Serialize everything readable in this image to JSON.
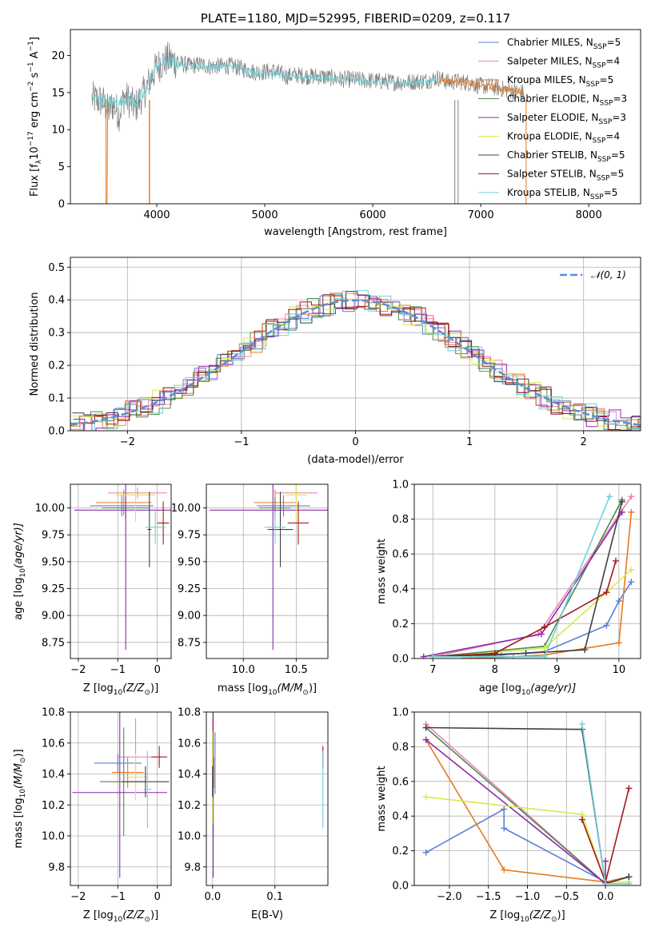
{
  "colors": {
    "Chabrier MILES": "#5b7fd6",
    "Salpeter MILES": "#ef84b4",
    "Kroupa MILES": "#e87a1e",
    "Chabrier ELODIE": "#4f8a4f",
    "Salpeter ELODIE": "#8d2aa9",
    "Kroupa ELODIE": "#d8ea4a",
    "Chabrier STELIB": "#404040",
    "Salpeter STELIB": "#a31a1a",
    "Kroupa STELIB": "#6fd2d8"
  },
  "chart_data": [
    {
      "id": "spectrum",
      "type": "line",
      "title": "PLATE=1180, MJD=52995, FIBERID=0209, z=0.117",
      "xlabel": "wavelength [Angstrom, rest frame]",
      "ylabel": "Flux [f",
      "ylabel_parts": [
        "Flux [f",
        "λ",
        "10",
        "−17",
        " erg cm",
        "−2",
        " s",
        "−1",
        " A",
        "−1",
        "]"
      ],
      "xlim": [
        3200,
        8480
      ],
      "ylim": [
        0,
        23.5
      ],
      "xticks": [
        4000,
        5000,
        6000,
        7000,
        8000
      ],
      "yticks": [
        0,
        5,
        10,
        15,
        20
      ],
      "grid": false,
      "legend_position": "top-right",
      "legend": [
        {
          "label": "Chabrier MILES, N",
          "sub": "SSP",
          "eq": "=5"
        },
        {
          "label": "Salpeter MILES, N",
          "sub": "SSP",
          "eq": "=4"
        },
        {
          "label": "Kroupa MILES, N",
          "sub": "SSP",
          "eq": "=5"
        },
        {
          "label": "Chabrier ELODIE, N",
          "sub": "SSP",
          "eq": "=3"
        },
        {
          "label": "Salpeter ELODIE, N",
          "sub": "SSP",
          "eq": "=3"
        },
        {
          "label": "Kroupa ELODIE, N",
          "sub": "SSP",
          "eq": "=4"
        },
        {
          "label": "Chabrier STELIB, N",
          "sub": "SSP",
          "eq": "=5"
        },
        {
          "label": "Salpeter STELIB, N",
          "sub": "SSP",
          "eq": "=5"
        },
        {
          "label": "Kroupa STELIB, N",
          "sub": "SSP",
          "eq": "=5"
        }
      ],
      "series": [
        {
          "name": "data",
          "color": "#808080",
          "x": [
            3400,
            3450,
            3500,
            3550,
            3600,
            3650,
            3700,
            3750,
            3800,
            3850,
            3900,
            3950,
            4000,
            4100,
            4200,
            4300,
            4400,
            4500,
            4600,
            4700,
            4800,
            4900,
            5000,
            5100,
            5200,
            5300,
            5400,
            5500,
            5600,
            5700,
            5800,
            5900,
            6000,
            6100,
            6200,
            6300,
            6400,
            6500,
            6600,
            6700,
            6800,
            6900,
            7000,
            7100,
            7200,
            7300,
            7400
          ],
          "y": [
            14.2,
            14.0,
            13.8,
            12.5,
            13.5,
            12.0,
            14.5,
            13.8,
            13.0,
            14.2,
            15.5,
            17.0,
            18.5,
            19.5,
            19.0,
            18.6,
            18.8,
            18.5,
            18.6,
            18.6,
            18.2,
            17.8,
            17.8,
            17.9,
            17.2,
            17.4,
            17.2,
            17.2,
            17.0,
            16.8,
            16.8,
            16.7,
            16.6,
            16.5,
            16.4,
            16.4,
            16.5,
            16.6,
            17.0,
            16.4,
            16.5,
            16.3,
            15.9,
            15.8,
            15.5,
            15.2,
            15.0
          ]
        },
        {
          "name": "model",
          "color": "#6fd2d8",
          "x": [
            3400,
            3450,
            3500,
            3550,
            3600,
            3650,
            3700,
            3750,
            3800,
            3850,
            3900,
            3950,
            4000,
            4100,
            4200,
            4300,
            4400,
            4500,
            4600,
            4700,
            4800,
            4900,
            5000,
            5100,
            5200,
            5300,
            5400,
            5500,
            5600,
            5700,
            5800,
            5900,
            6000,
            6100,
            6200,
            6300,
            6400,
            6500,
            6600
          ],
          "y": [
            14.3,
            14.1,
            13.9,
            13.4,
            13.8,
            13.4,
            14.2,
            14.0,
            13.7,
            14.4,
            15.0,
            17.2,
            18.8,
            19.2,
            18.9,
            18.5,
            18.7,
            18.4,
            18.5,
            18.5,
            18.1,
            17.7,
            17.6,
            17.6,
            17.1,
            17.2,
            17.0,
            17.0,
            16.9,
            16.7,
            16.7,
            16.6,
            16.5,
            16.4,
            16.3,
            16.3,
            16.4,
            16.4,
            16.8
          ]
        },
        {
          "name": "model-red",
          "color": "#e87a1e",
          "x": [
            6600,
            6700,
            6800,
            6900,
            7000,
            7100,
            7200,
            7300,
            7400
          ],
          "y": [
            16.8,
            16.6,
            16.5,
            16.3,
            15.9,
            15.7,
            15.5,
            15.3,
            15.1
          ]
        }
      ]
    },
    {
      "id": "residuals",
      "type": "step",
      "xlabel": "(data-model)/error",
      "ylabel": "Normed distribution",
      "xlim": [
        -2.5,
        2.5
      ],
      "ylim": [
        0,
        0.53
      ],
      "xticks": [
        -2,
        -1,
        0,
        1,
        2
      ],
      "yticks": [
        0.0,
        0.1,
        0.2,
        0.3,
        0.4,
        0.5
      ],
      "grid": true,
      "legend_position": "top-right",
      "legend": "𝒩(0, 1)",
      "gaussian": {
        "mu": 0,
        "sigma": 1,
        "color": "#5b8dd6"
      }
    },
    {
      "id": "age_vs_Z",
      "type": "errorbar",
      "xlabel": "Z [log",
      "xlabel_parts": [
        "Z [log",
        "10",
        "(Z/Z",
        "⊙",
        ")]"
      ],
      "ylabel_parts": [
        "age  [log",
        "10",
        "(age/yr)]"
      ],
      "xlim": [
        -2.2,
        0.35
      ],
      "ylim": [
        8.6,
        10.22
      ],
      "xticks": [
        -2,
        -1,
        0
      ],
      "yticks": [
        8.75,
        9.0,
        9.25,
        9.5,
        9.75,
        10.0
      ],
      "grid": true,
      "points": [
        {
          "c": "Chabrier MILES",
          "x": -0.9,
          "xerr": 0.8,
          "y": 10.02,
          "yerr": 0.1
        },
        {
          "c": "Salpeter MILES",
          "x": -0.5,
          "xerr": 0.75,
          "y": 10.14,
          "yerr": 0.05
        },
        {
          "c": "Kroupa MILES",
          "x": -0.85,
          "xerr": 0.7,
          "y": 10.05,
          "yerr": 0.12
        },
        {
          "c": "Chabrier ELODIE",
          "x": -0.8,
          "xerr": 0.6,
          "y": 10.0,
          "yerr": 0.1
        },
        {
          "c": "Salpeter ELODIE",
          "x": -0.8,
          "xerr": 1.3,
          "y": 9.98,
          "yerr": 1.3
        },
        {
          "c": "Kroupa ELODIE",
          "x": -0.55,
          "xerr": 0.5,
          "y": 10.12,
          "yerr": 0.25
        },
        {
          "c": "Chabrier STELIB",
          "x": -0.2,
          "xerr": 0.05,
          "y": 9.8,
          "yerr": 0.35
        },
        {
          "c": "Salpeter STELIB",
          "x": 0.15,
          "xerr": 0.15,
          "y": 9.86,
          "yerr": 0.2
        },
        {
          "c": "Kroupa STELIB",
          "x": -0.05,
          "xerr": 0.25,
          "y": 9.82,
          "yerr": 0.15
        }
      ]
    },
    {
      "id": "age_vs_mass",
      "type": "errorbar",
      "xlabel_parts": [
        "mass [log",
        "10",
        "(M/M",
        "⊙",
        ")]"
      ],
      "xlim": [
        9.65,
        10.8
      ],
      "ylim": [
        8.6,
        10.22
      ],
      "xticks": [
        10.0,
        10.5
      ],
      "yticks": [
        8.75,
        9.0,
        9.25,
        9.5,
        9.75,
        10.0
      ],
      "grid": true,
      "points": [
        {
          "c": "Chabrier MILES",
          "x": 10.38,
          "xerr": 0.25,
          "y": 10.02,
          "yerr": 0.1
        },
        {
          "c": "Salpeter MILES",
          "x": 10.5,
          "xerr": 0.2,
          "y": 10.14,
          "yerr": 0.05
        },
        {
          "c": "Kroupa MILES",
          "x": 10.3,
          "xerr": 0.2,
          "y": 10.05,
          "yerr": 0.12
        },
        {
          "c": "Chabrier ELODIE",
          "x": 10.3,
          "xerr": 0.15,
          "y": 10.0,
          "yerr": 0.1
        },
        {
          "c": "Salpeter ELODIE",
          "x": 10.28,
          "xerr": 0.6,
          "y": 9.98,
          "yerr": 1.3
        },
        {
          "c": "Kroupa ELODIE",
          "x": 10.5,
          "xerr": 0.1,
          "y": 10.12,
          "yerr": 0.25
        },
        {
          "c": "Chabrier STELIB",
          "x": 10.35,
          "xerr": 0.12,
          "y": 9.8,
          "yerr": 0.35
        },
        {
          "c": "Salpeter STELIB",
          "x": 10.52,
          "xerr": 0.1,
          "y": 9.86,
          "yerr": 0.2
        },
        {
          "c": "Kroupa STELIB",
          "x": 10.3,
          "xerr": 0.1,
          "y": 9.82,
          "yerr": 0.15
        }
      ]
    },
    {
      "id": "mass_weight_vs_age",
      "type": "line",
      "xlabel_parts": [
        "age  [log",
        "10",
        "(age/yr)]"
      ],
      "ylabel": "mass weight",
      "xlim": [
        6.7,
        10.35
      ],
      "ylim": [
        0,
        1
      ],
      "xticks": [
        7,
        8,
        9,
        10
      ],
      "yticks": [
        0.0,
        0.2,
        0.4,
        0.6,
        0.8,
        1.0
      ],
      "grid": true,
      "series": [
        {
          "c": "Chabrier MILES",
          "x": [
            7.6,
            8.1,
            8.8,
            9.8,
            10.0,
            10.2
          ],
          "y": [
            0.01,
            0.02,
            0.04,
            0.19,
            0.33,
            0.44
          ]
        },
        {
          "c": "Salpeter MILES",
          "x": [
            7.0,
            8.7,
            10.2
          ],
          "y": [
            0.01,
            0.14,
            0.93
          ]
        },
        {
          "c": "Kroupa MILES",
          "x": [
            7.5,
            8.3,
            8.8,
            10.0,
            10.2
          ],
          "y": [
            0.0,
            0.01,
            0.02,
            0.09,
            0.84
          ]
        },
        {
          "c": "Chabrier ELODIE",
          "x": [
            7.0,
            8.8,
            10.05
          ],
          "y": [
            0.01,
            0.07,
            0.91
          ]
        },
        {
          "c": "Salpeter ELODIE",
          "x": [
            6.85,
            8.75,
            10.05
          ],
          "y": [
            0.01,
            0.14,
            0.84
          ]
        },
        {
          "c": "Kroupa ELODIE",
          "x": [
            7.2,
            8.8,
            9.8,
            10.2
          ],
          "y": [
            0.01,
            0.06,
            0.38,
            0.51
          ]
        },
        {
          "c": "Chabrier STELIB",
          "x": [
            7.0,
            8.5,
            9.45,
            10.05
          ],
          "y": [
            0.01,
            0.03,
            0.05,
            0.9
          ]
        },
        {
          "c": "Salpeter STELIB",
          "x": [
            7.0,
            8.0,
            8.8,
            9.8,
            9.95
          ],
          "y": [
            0.01,
            0.03,
            0.18,
            0.38,
            0.56
          ]
        },
        {
          "c": "Kroupa STELIB",
          "x": [
            7.0,
            8.8,
            9.85
          ],
          "y": [
            0.01,
            0.01,
            0.93
          ]
        }
      ]
    },
    {
      "id": "mass_vs_Z",
      "type": "errorbar",
      "xlabel_parts": [
        "Z [log",
        "10",
        "(Z/Z",
        "⊙",
        ")]"
      ],
      "ylabel_parts": [
        "mass [log",
        "10",
        "(M/M",
        "⊙",
        ")]"
      ],
      "xlim": [
        -2.2,
        0.35
      ],
      "ylim": [
        9.68,
        10.8
      ],
      "xticks": [
        -2,
        -1,
        0
      ],
      "yticks": [
        9.8,
        10.0,
        10.2,
        10.4,
        10.6,
        10.8
      ],
      "grid": true,
      "points": [
        {
          "c": "Chabrier MILES",
          "x": -1.0,
          "xerr": 0.6,
          "y": 10.47,
          "yerr": 0.06
        },
        {
          "c": "Salpeter MILES",
          "x": -0.55,
          "xerr": 0.45,
          "y": 10.51,
          "yerr": 0.25
        },
        {
          "c": "Kroupa MILES",
          "x": -0.75,
          "xerr": 0.4,
          "y": 10.41,
          "yerr": 0.1
        },
        {
          "c": "Chabrier ELODIE",
          "x": -0.85,
          "xerr": 0.6,
          "y": 10.35,
          "yerr": 0.35
        },
        {
          "c": "Salpeter ELODIE",
          "x": -0.95,
          "xerr": 1.2,
          "y": 10.28,
          "yerr": 0.55
        },
        {
          "c": "Kroupa ELODIE",
          "x": -0.55,
          "xerr": 0.3,
          "y": 10.38,
          "yerr": 0.15
        },
        {
          "c": "Chabrier STELIB",
          "x": -0.3,
          "xerr": 0.6,
          "y": 10.35,
          "yerr": 0.1
        },
        {
          "c": "Salpeter STELIB",
          "x": 0.05,
          "xerr": 0.2,
          "y": 10.51,
          "yerr": 0.07
        },
        {
          "c": "Kroupa STELIB",
          "x": -0.25,
          "xerr": 0.1,
          "y": 10.3,
          "yerr": 0.25
        }
      ]
    },
    {
      "id": "mass_vs_EBV",
      "type": "errorbar",
      "xlabel": "E(B-V)",
      "xlim": [
        -0.01,
        0.185
      ],
      "ylim": [
        9.68,
        10.8
      ],
      "xticks": [
        0.0,
        0.1
      ],
      "yticks": [
        9.8,
        10.0,
        10.2,
        10.4,
        10.6,
        10.8
      ],
      "grid": true,
      "points": [
        {
          "c": "Chabrier MILES",
          "x": 0.004,
          "xerr": 0.0,
          "y": 10.47,
          "yerr": 0.2
        },
        {
          "c": "Salpeter MILES",
          "x": 0.0,
          "xerr": 0.0,
          "y": 10.51,
          "yerr": 0.25
        },
        {
          "c": "Kroupa MILES",
          "x": 0.002,
          "xerr": 0.0,
          "y": 10.41,
          "yerr": 0.1
        },
        {
          "c": "Chabrier ELODIE",
          "x": 0.001,
          "xerr": 0.0,
          "y": 10.35,
          "yerr": 0.35
        },
        {
          "c": "Salpeter ELODIE",
          "x": 0.001,
          "xerr": 0.0,
          "y": 10.28,
          "yerr": 0.55
        },
        {
          "c": "Kroupa ELODIE",
          "x": 0.0,
          "xerr": 0.0,
          "y": 10.38,
          "yerr": 0.3
        },
        {
          "c": "Chabrier STELIB",
          "x": 0.0,
          "xerr": 0.0,
          "y": 10.35,
          "yerr": 0.1
        },
        {
          "c": "Salpeter STELIB",
          "x": 0.177,
          "xerr": 0.0,
          "y": 10.51,
          "yerr": 0.07
        },
        {
          "c": "Kroupa STELIB",
          "x": 0.177,
          "xerr": 0.0,
          "y": 10.3,
          "yerr": 0.25
        }
      ]
    },
    {
      "id": "mass_weight_vs_Z",
      "type": "line",
      "xlabel_parts": [
        "Z [log",
        "10",
        "(Z/Z",
        "⊙",
        ")]"
      ],
      "ylabel": "mass weight",
      "xlim": [
        -2.45,
        0.45
      ],
      "ylim": [
        0,
        1
      ],
      "xticks": [
        -2.0,
        -1.5,
        -1.0,
        -0.5,
        0.0
      ],
      "yticks": [
        0.0,
        0.2,
        0.4,
        0.6,
        0.8,
        1.0
      ],
      "grid": true,
      "series": [
        {
          "c": "Chabrier MILES",
          "x": [
            -2.3,
            -1.3,
            -1.3,
            0.0,
            0.3
          ],
          "y": [
            0.19,
            0.44,
            0.33,
            0.02,
            0.05
          ]
        },
        {
          "c": "Salpeter MILES",
          "x": [
            -2.3,
            0.0,
            0.3
          ],
          "y": [
            0.93,
            0.01,
            0.05
          ]
        },
        {
          "c": "Kroupa MILES",
          "x": [
            -2.3,
            -1.3,
            0.0,
            0.3
          ],
          "y": [
            0.84,
            0.09,
            0.02,
            0.05
          ]
        },
        {
          "c": "Chabrier ELODIE",
          "x": [
            -2.3,
            0.0
          ],
          "y": [
            0.91,
            0.01
          ]
        },
        {
          "c": "Salpeter ELODIE",
          "x": [
            -2.3,
            0.0,
            0.0
          ],
          "y": [
            0.84,
            0.01,
            0.14
          ]
        },
        {
          "c": "Kroupa ELODIE",
          "x": [
            -2.3,
            -0.3,
            0.0,
            0.3
          ],
          "y": [
            0.51,
            0.41,
            0.02,
            0.02
          ]
        },
        {
          "c": "Chabrier STELIB",
          "x": [
            -2.3,
            -0.3,
            0.0,
            0.3
          ],
          "y": [
            0.91,
            0.9,
            0.01,
            0.05
          ]
        },
        {
          "c": "Salpeter STELIB",
          "x": [
            -0.3,
            0.0,
            0.3
          ],
          "y": [
            0.38,
            0.02,
            0.56
          ]
        },
        {
          "c": "Kroupa STELIB",
          "x": [
            -0.3,
            0.0,
            0.3
          ],
          "y": [
            0.93,
            0.01,
            0.01
          ]
        }
      ]
    }
  ]
}
